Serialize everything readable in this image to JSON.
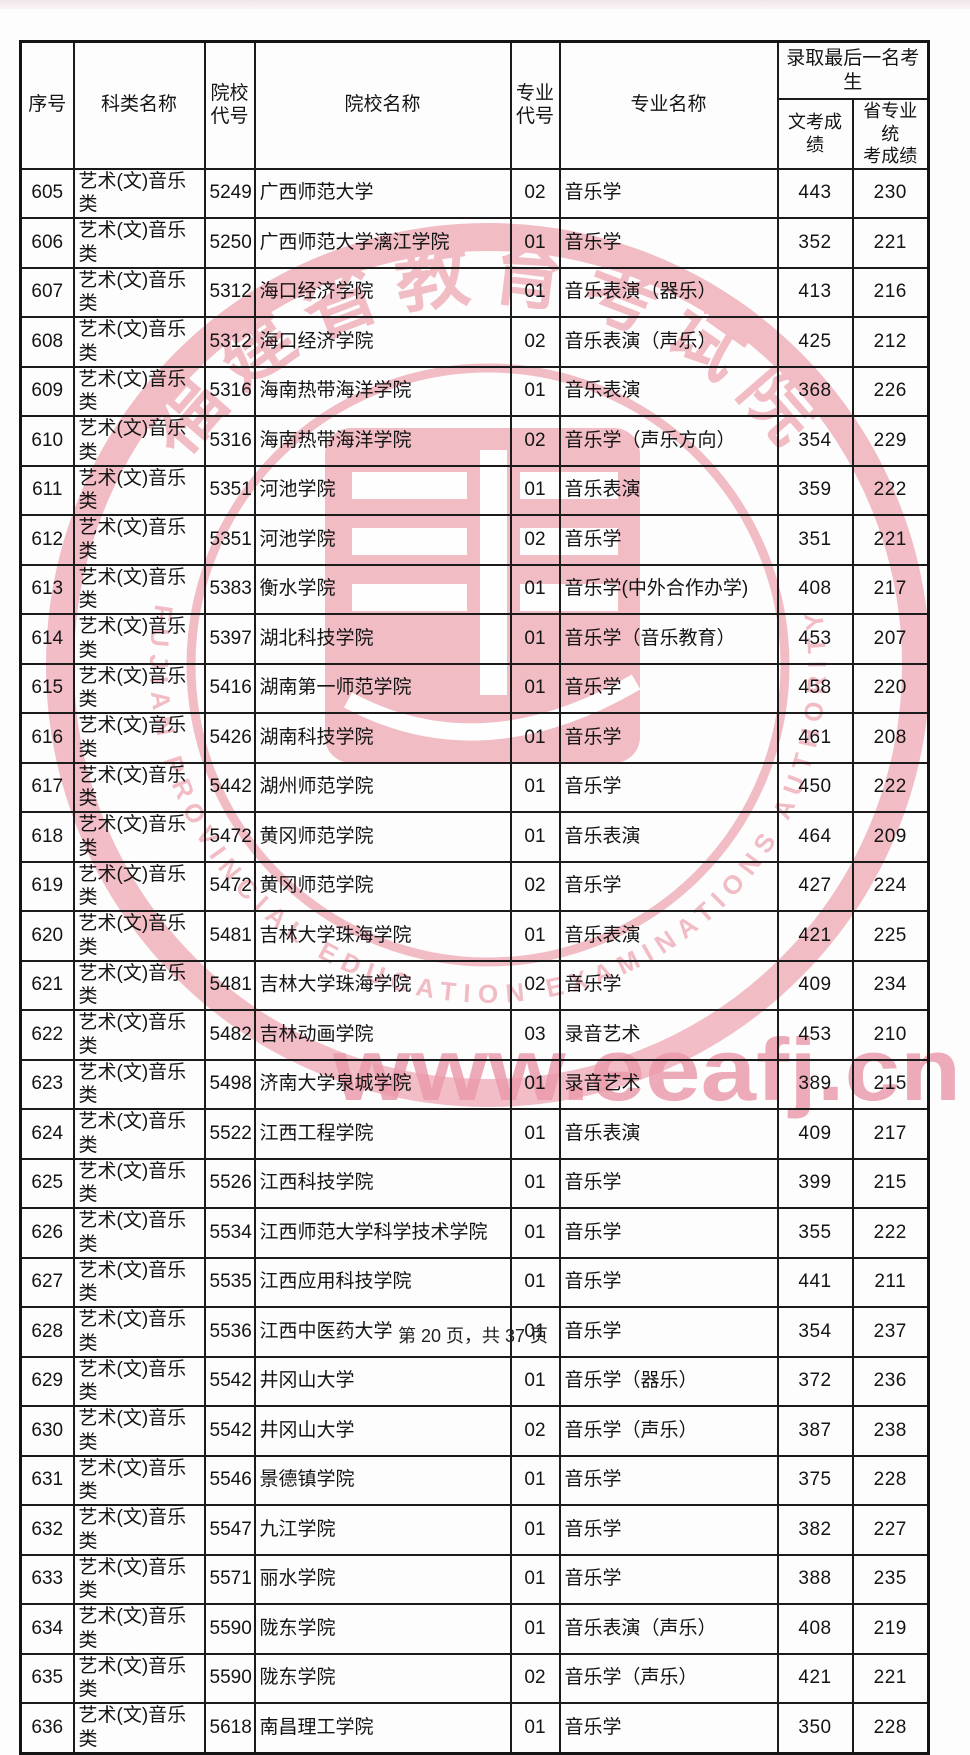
{
  "table": {
    "columns": [
      {
        "key": "serial",
        "label": "序号"
      },
      {
        "key": "category",
        "label": "科类名称"
      },
      {
        "key": "school_code",
        "label": "院校\n代号"
      },
      {
        "key": "school",
        "label": "院校名称"
      },
      {
        "key": "major_code",
        "label": "专业\n代号"
      },
      {
        "key": "major",
        "label": "专业名称"
      }
    ],
    "admission_group_label": "录取最后一名考生",
    "admission_sub_columns": [
      {
        "key": "exam_score",
        "label": "文考成绩"
      },
      {
        "key": "provincial_score",
        "label": "省专业统\n考成绩"
      }
    ],
    "rows": [
      [
        "605",
        "艺术(文)音乐类",
        "5249",
        "广西师范大学",
        "02",
        "音乐学",
        "443",
        "230"
      ],
      [
        "606",
        "艺术(文)音乐类",
        "5250",
        "广西师范大学漓江学院",
        "01",
        "音乐学",
        "352",
        "221"
      ],
      [
        "607",
        "艺术(文)音乐类",
        "5312",
        "海口经济学院",
        "01",
        "音乐表演（器乐）",
        "413",
        "216"
      ],
      [
        "608",
        "艺术(文)音乐类",
        "5312",
        "海口经济学院",
        "02",
        "音乐表演（声乐）",
        "425",
        "212"
      ],
      [
        "609",
        "艺术(文)音乐类",
        "5316",
        "海南热带海洋学院",
        "01",
        "音乐表演",
        "368",
        "226"
      ],
      [
        "610",
        "艺术(文)音乐类",
        "5316",
        "海南热带海洋学院",
        "02",
        "音乐学（声乐方向）",
        "354",
        "229"
      ],
      [
        "611",
        "艺术(文)音乐类",
        "5351",
        "河池学院",
        "01",
        "音乐表演",
        "359",
        "222"
      ],
      [
        "612",
        "艺术(文)音乐类",
        "5351",
        "河池学院",
        "02",
        "音乐学",
        "351",
        "221"
      ],
      [
        "613",
        "艺术(文)音乐类",
        "5383",
        "衡水学院",
        "01",
        "音乐学(中外合作办学)",
        "408",
        "217"
      ],
      [
        "614",
        "艺术(文)音乐类",
        "5397",
        "湖北科技学院",
        "01",
        "音乐学（音乐教育）",
        "453",
        "207"
      ],
      [
        "615",
        "艺术(文)音乐类",
        "5416",
        "湖南第一师范学院",
        "01",
        "音乐学",
        "458",
        "220"
      ],
      [
        "616",
        "艺术(文)音乐类",
        "5426",
        "湖南科技学院",
        "01",
        "音乐学",
        "461",
        "208"
      ],
      [
        "617",
        "艺术(文)音乐类",
        "5442",
        "湖州师范学院",
        "01",
        "音乐学",
        "450",
        "222"
      ],
      [
        "618",
        "艺术(文)音乐类",
        "5472",
        "黄冈师范学院",
        "01",
        "音乐表演",
        "464",
        "209"
      ],
      [
        "619",
        "艺术(文)音乐类",
        "5472",
        "黄冈师范学院",
        "02",
        "音乐学",
        "427",
        "224"
      ],
      [
        "620",
        "艺术(文)音乐类",
        "5481",
        "吉林大学珠海学院",
        "01",
        "音乐表演",
        "421",
        "225"
      ],
      [
        "621",
        "艺术(文)音乐类",
        "5481",
        "吉林大学珠海学院",
        "02",
        "音乐学",
        "409",
        "234"
      ],
      [
        "622",
        "艺术(文)音乐类",
        "5482",
        "吉林动画学院",
        "03",
        "录音艺术",
        "453",
        "210"
      ],
      [
        "623",
        "艺术(文)音乐类",
        "5498",
        "济南大学泉城学院",
        "01",
        "录音艺术",
        "389",
        "215"
      ],
      [
        "624",
        "艺术(文)音乐类",
        "5522",
        "江西工程学院",
        "01",
        "音乐表演",
        "409",
        "217"
      ],
      [
        "625",
        "艺术(文)音乐类",
        "5526",
        "江西科技学院",
        "01",
        "音乐学",
        "399",
        "215"
      ],
      [
        "626",
        "艺术(文)音乐类",
        "5534",
        "江西师范大学科学技术学院",
        "01",
        "音乐学",
        "355",
        "222"
      ],
      [
        "627",
        "艺术(文)音乐类",
        "5535",
        "江西应用科技学院",
        "01",
        "音乐学",
        "441",
        "211"
      ],
      [
        "628",
        "艺术(文)音乐类",
        "5536",
        "江西中医药大学",
        "01",
        "音乐学",
        "354",
        "237"
      ],
      [
        "629",
        "艺术(文)音乐类",
        "5542",
        "井冈山大学",
        "01",
        "音乐学（器乐）",
        "372",
        "236"
      ],
      [
        "630",
        "艺术(文)音乐类",
        "5542",
        "井冈山大学",
        "02",
        "音乐学（声乐）",
        "387",
        "238"
      ],
      [
        "631",
        "艺术(文)音乐类",
        "5546",
        "景德镇学院",
        "01",
        "音乐学",
        "375",
        "228"
      ],
      [
        "632",
        "艺术(文)音乐类",
        "5547",
        "九江学院",
        "01",
        "音乐学",
        "382",
        "227"
      ],
      [
        "633",
        "艺术(文)音乐类",
        "5571",
        "丽水学院",
        "01",
        "音乐学",
        "388",
        "235"
      ],
      [
        "634",
        "艺术(文)音乐类",
        "5590",
        "陇东学院",
        "01",
        "音乐表演（声乐）",
        "408",
        "219"
      ],
      [
        "635",
        "艺术(文)音乐类",
        "5590",
        "陇东学院",
        "02",
        "音乐学（声乐）",
        "421",
        "221"
      ],
      [
        "636",
        "艺术(文)音乐类",
        "5618",
        "南昌理工学院",
        "01",
        "音乐学",
        "350",
        "228"
      ]
    ]
  },
  "watermark": {
    "seal_text_cn": "福建省教育考试院",
    "seal_text_en": "FUJIAN PROVINCIAL EDUCATION EXAMINATIONS AUTHORITY",
    "site_text": "www.eeafj.cn",
    "seal_color": "#f1b6c0",
    "site_color": "#eb9cac"
  },
  "footer": {
    "page_info": "第 20 页，共 37 页"
  }
}
